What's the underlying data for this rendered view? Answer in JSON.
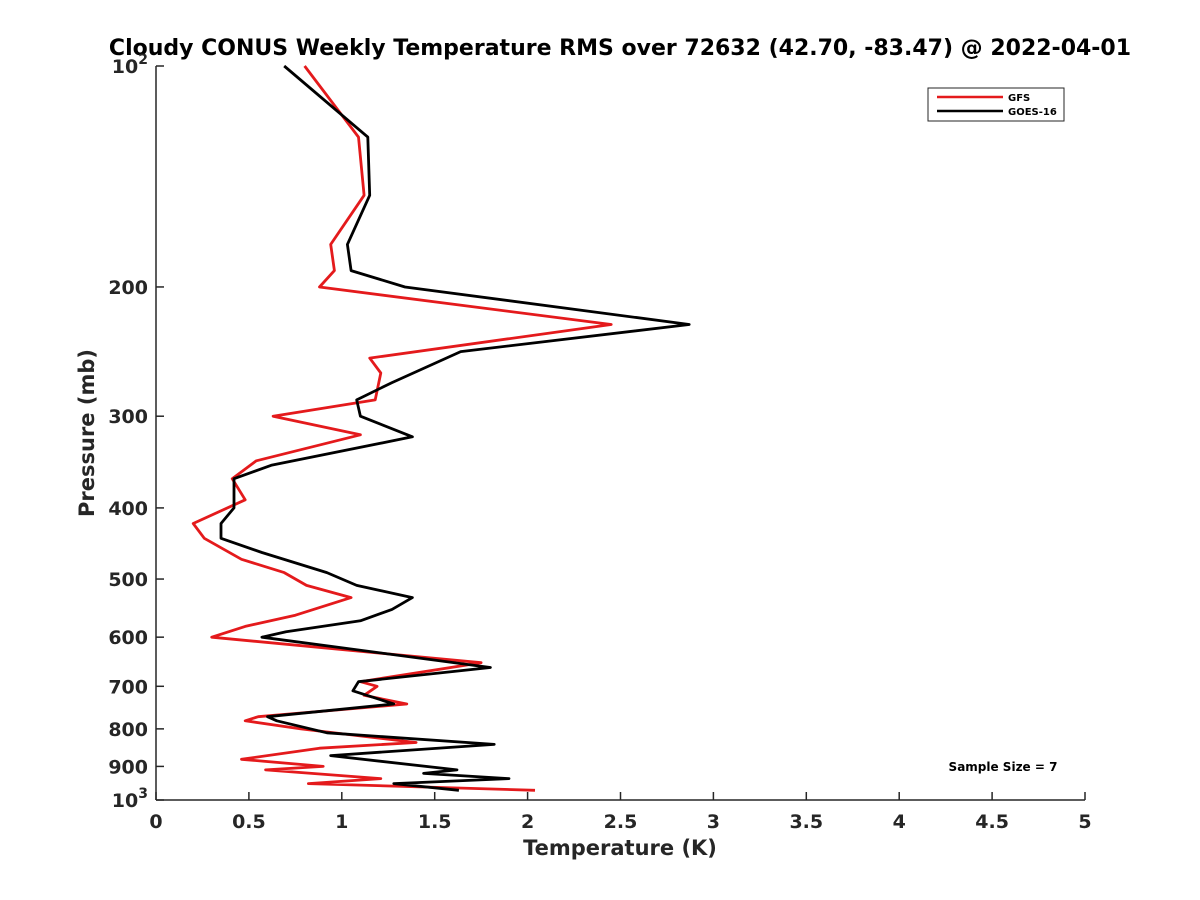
{
  "chart_data": {
    "type": "line",
    "title": "Cloudy CONUS Weekly Temperature RMS over 72632 (42.70, -83.47) @ 2022-04-01",
    "xlabel": "Temperature (K)",
    "ylabel": "Pressure (mb)",
    "xlim": [
      0,
      5
    ],
    "ylim": [
      100,
      1000
    ],
    "y_scale": "log",
    "y_reversed": true,
    "x_ticks": [
      "0",
      "0.5",
      "1",
      "1.5",
      "2",
      "2.5",
      "3",
      "3.5",
      "4",
      "4.5",
      "5"
    ],
    "y_ticks": [
      {
        "value": 100,
        "base": "10",
        "exp": "2"
      },
      {
        "value": 200,
        "label": "200"
      },
      {
        "value": 300,
        "label": "300"
      },
      {
        "value": 400,
        "label": "400"
      },
      {
        "value": 500,
        "label": "500"
      },
      {
        "value": 600,
        "label": "600"
      },
      {
        "value": 700,
        "label": "700"
      },
      {
        "value": 800,
        "label": "800"
      },
      {
        "value": 900,
        "label": "900"
      },
      {
        "value": 1000,
        "base": "10",
        "exp": "3"
      }
    ],
    "grid": false,
    "legend_position": "top-right",
    "annotation": "Sample Size = 7",
    "series": [
      {
        "name": "GFS",
        "color": "#e41a1c",
        "points": [
          {
            "x": 0.8,
            "p": 100
          },
          {
            "x": 1.09,
            "p": 125
          },
          {
            "x": 1.12,
            "p": 150
          },
          {
            "x": 0.94,
            "p": 175
          },
          {
            "x": 0.96,
            "p": 190
          },
          {
            "x": 0.88,
            "p": 200
          },
          {
            "x": 2.45,
            "p": 225
          },
          {
            "x": 1.15,
            "p": 250
          },
          {
            "x": 1.21,
            "p": 262
          },
          {
            "x": 1.18,
            "p": 285
          },
          {
            "x": 0.63,
            "p": 300
          },
          {
            "x": 1.1,
            "p": 318
          },
          {
            "x": 0.54,
            "p": 345
          },
          {
            "x": 0.41,
            "p": 365
          },
          {
            "x": 0.48,
            "p": 390
          },
          {
            "x": 0.2,
            "p": 420
          },
          {
            "x": 0.26,
            "p": 440
          },
          {
            "x": 0.46,
            "p": 470
          },
          {
            "x": 0.69,
            "p": 490
          },
          {
            "x": 0.81,
            "p": 510
          },
          {
            "x": 1.05,
            "p": 530
          },
          {
            "x": 0.75,
            "p": 560
          },
          {
            "x": 0.48,
            "p": 580
          },
          {
            "x": 0.3,
            "p": 600
          },
          {
            "x": 1.75,
            "p": 650
          },
          {
            "x": 1.1,
            "p": 690
          },
          {
            "x": 1.19,
            "p": 700
          },
          {
            "x": 1.12,
            "p": 720
          },
          {
            "x": 1.35,
            "p": 740
          },
          {
            "x": 0.55,
            "p": 770
          },
          {
            "x": 0.48,
            "p": 780
          },
          {
            "x": 0.78,
            "p": 800
          },
          {
            "x": 1.4,
            "p": 835
          },
          {
            "x": 0.88,
            "p": 850
          },
          {
            "x": 0.46,
            "p": 880
          },
          {
            "x": 0.9,
            "p": 900
          },
          {
            "x": 0.59,
            "p": 910
          },
          {
            "x": 1.21,
            "p": 935
          },
          {
            "x": 0.82,
            "p": 950
          },
          {
            "x": 2.04,
            "p": 970
          }
        ]
      },
      {
        "name": "GOES-16",
        "color": "#000000",
        "points": [
          {
            "x": 0.69,
            "p": 100
          },
          {
            "x": 1.14,
            "p": 125
          },
          {
            "x": 1.15,
            "p": 150
          },
          {
            "x": 1.03,
            "p": 175
          },
          {
            "x": 1.05,
            "p": 190
          },
          {
            "x": 1.34,
            "p": 200
          },
          {
            "x": 2.87,
            "p": 225
          },
          {
            "x": 1.64,
            "p": 245
          },
          {
            "x": 1.27,
            "p": 270
          },
          {
            "x": 1.08,
            "p": 285
          },
          {
            "x": 1.1,
            "p": 300
          },
          {
            "x": 1.38,
            "p": 320
          },
          {
            "x": 0.62,
            "p": 350
          },
          {
            "x": 0.42,
            "p": 365
          },
          {
            "x": 0.42,
            "p": 400
          },
          {
            "x": 0.35,
            "p": 420
          },
          {
            "x": 0.35,
            "p": 440
          },
          {
            "x": 0.57,
            "p": 460
          },
          {
            "x": 0.92,
            "p": 490
          },
          {
            "x": 1.08,
            "p": 510
          },
          {
            "x": 1.38,
            "p": 530
          },
          {
            "x": 1.27,
            "p": 550
          },
          {
            "x": 1.1,
            "p": 570
          },
          {
            "x": 0.7,
            "p": 590
          },
          {
            "x": 0.57,
            "p": 600
          },
          {
            "x": 1.8,
            "p": 660
          },
          {
            "x": 1.09,
            "p": 690
          },
          {
            "x": 1.06,
            "p": 710
          },
          {
            "x": 1.28,
            "p": 740
          },
          {
            "x": 0.6,
            "p": 770
          },
          {
            "x": 0.65,
            "p": 780
          },
          {
            "x": 0.92,
            "p": 810
          },
          {
            "x": 1.82,
            "p": 840
          },
          {
            "x": 0.94,
            "p": 870
          },
          {
            "x": 1.62,
            "p": 910
          },
          {
            "x": 1.44,
            "p": 920
          },
          {
            "x": 1.9,
            "p": 935
          },
          {
            "x": 1.28,
            "p": 950
          },
          {
            "x": 1.63,
            "p": 970
          }
        ]
      }
    ]
  }
}
